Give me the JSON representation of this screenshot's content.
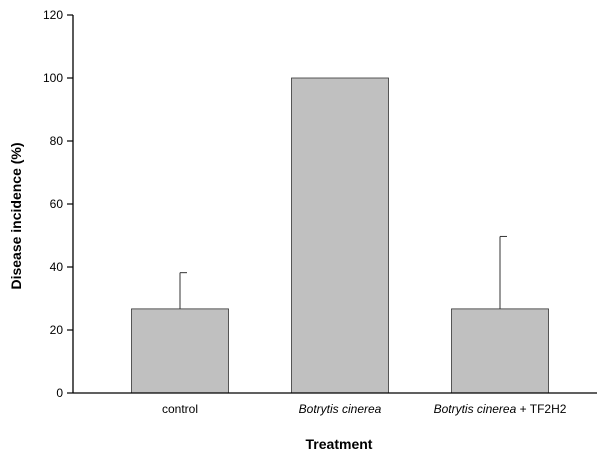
{
  "chart_data": {
    "type": "bar",
    "title": "",
    "xlabel": "Treatment",
    "ylabel": "Disease incidence (%)",
    "ylim": [
      0,
      120
    ],
    "yticks": [
      0,
      20,
      40,
      60,
      80,
      100,
      120
    ],
    "categories": [
      {
        "name": "control",
        "italic": "",
        "suffix": "control"
      },
      {
        "name": "Botrytis cinerea",
        "italic": "Botrytis cinerea",
        "suffix": ""
      },
      {
        "name": "Botrytis cinerea + TF2H2",
        "italic": "Botrytis cinerea",
        "suffix": " + TF2H2"
      }
    ],
    "values": [
      26.7,
      100,
      26.7
    ],
    "error_upper": [
      11.5,
      0,
      23
    ],
    "grid": false,
    "legend": "none",
    "bar_color": "#c0c0c0"
  }
}
